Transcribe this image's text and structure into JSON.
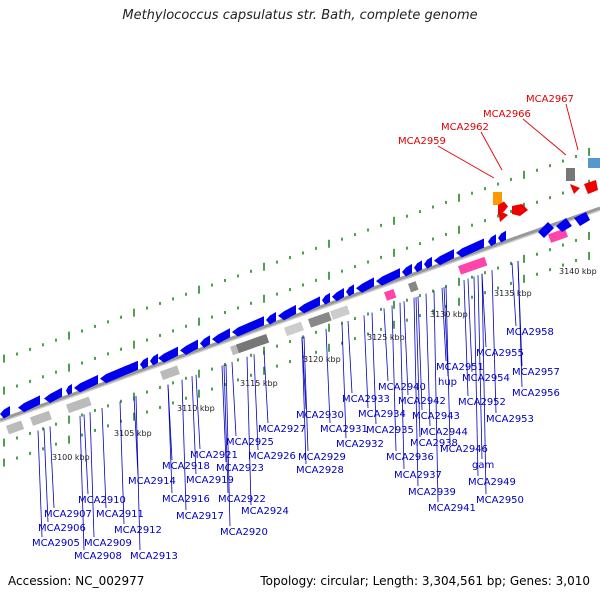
{
  "title": "Methylococcus capsulatus str. Bath, complete genome",
  "accession": "Accession: NC_002977",
  "topology": "Topology: circular; Length: 3,304,561 bp; Genes: 3,010",
  "tick_labels": [
    "3100 kbp",
    "3105 kbp",
    "3110 kbp",
    "3115 kbp",
    "3120 kbp",
    "3125 kbp",
    "3130 kbp",
    "3135 kbp",
    "3140 kbp"
  ],
  "gene_labels": [
    "MCA2905",
    "MCA2906",
    "MCA2907",
    "MCA2908",
    "MCA2909",
    "MCA2910",
    "MCA2911",
    "MCA2912",
    "MCA2913",
    "MCA2914",
    "MCA2916",
    "MCA2917",
    "MCA2918",
    "MCA2919",
    "MCA2920",
    "MCA2921",
    "MCA2922",
    "MCA2923",
    "MCA2924",
    "MCA2925",
    "MCA2926",
    "MCA2927",
    "MCA2928",
    "MCA2929",
    "MCA2930",
    "MCA2931",
    "MCA2932",
    "MCA2933",
    "MCA2934",
    "MCA2935",
    "MCA2936",
    "MCA2937",
    "MCA2938",
    "MCA2939",
    "MCA2940",
    "MCA2941",
    "MCA2942",
    "MCA2943",
    "MCA2944",
    "MCA2946",
    "hup",
    "gam",
    "MCA2949",
    "MCA2950",
    "MCA2951",
    "MCA2952",
    "MCA2953",
    "MCA2954",
    "MCA2955",
    "MCA2956",
    "MCA2957",
    "MCA2958"
  ],
  "highlighted_labels": [
    "MCA2959",
    "MCA2962",
    "MCA2966",
    "MCA2967"
  ],
  "colors": {
    "gene_label": "#0000c0",
    "highlight_label": "#e00000",
    "cds": "#0000ee",
    "rna": "#ff2288",
    "highlight_cds": "#ee0000",
    "backbone": "#999999",
    "tick": "#228822",
    "orange": "#ff9900",
    "light_blue": "#5599cc"
  }
}
